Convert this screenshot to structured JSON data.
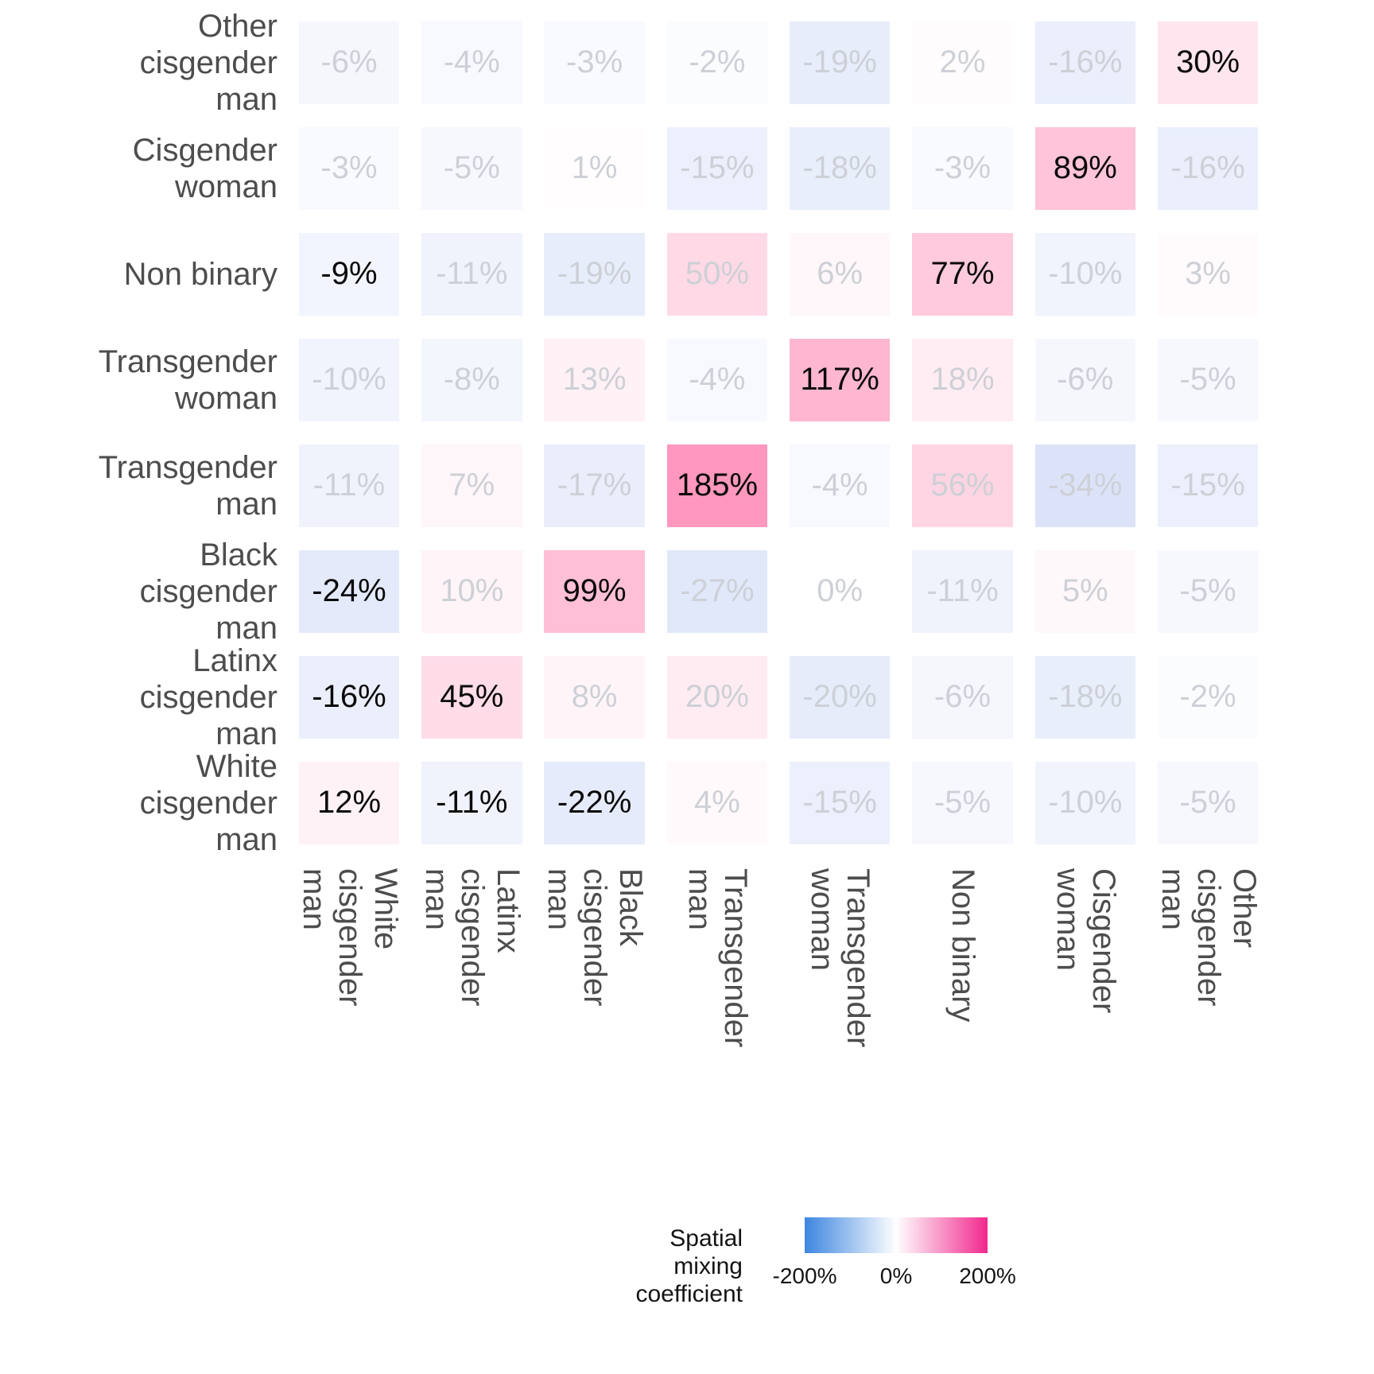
{
  "chart_data": {
    "type": "heatmap",
    "title": "",
    "unit": "%",
    "x_axis": {
      "categories_left_to_right": [
        "White cisgender man",
        "Latinx cisgender man",
        "Black cisgender man",
        "Transgender man",
        "Transgender woman",
        "Non binary",
        "Cisgender woman",
        "Other cisgender man"
      ],
      "label_lines": [
        [
          "White",
          "cisgender",
          "man"
        ],
        [
          "Latinx",
          "cisgender",
          "man"
        ],
        [
          "Black",
          "cisgender",
          "man"
        ],
        [
          "Transgender",
          "man"
        ],
        [
          "Transgender",
          "woman"
        ],
        [
          "Non binary"
        ],
        [
          "Cisgender",
          "woman"
        ],
        [
          "Other",
          "cisgender",
          "man"
        ]
      ]
    },
    "y_axis": {
      "categories_top_to_bottom": [
        "Other cisgender man",
        "Cisgender woman",
        "Non binary",
        "Transgender woman",
        "Transgender man",
        "Black cisgender man",
        "Latinx cisgender man",
        "White cisgender man"
      ],
      "label_lines": [
        [
          "Other",
          "cisgender",
          "man"
        ],
        [
          "Cisgender",
          "woman"
        ],
        [
          "Non binary"
        ],
        [
          "Transgender",
          "woman"
        ],
        [
          "Transgender",
          "man"
        ],
        [
          "Black",
          "cisgender",
          "man"
        ],
        [
          "Latinx",
          "cisgender",
          "man"
        ],
        [
          "White",
          "cisgender",
          "man"
        ]
      ]
    },
    "values_percent_rows_top_to_bottom": [
      [
        -6,
        -4,
        -3,
        -2,
        -19,
        2,
        -16,
        30
      ],
      [
        -3,
        -5,
        1,
        -15,
        -18,
        -3,
        89,
        -16
      ],
      [
        -9,
        -11,
        -19,
        50,
        6,
        77,
        -10,
        3
      ],
      [
        -10,
        -8,
        13,
        -4,
        117,
        18,
        -6,
        -5
      ],
      [
        -11,
        7,
        -17,
        185,
        -4,
        56,
        -34,
        -15
      ],
      [
        -24,
        10,
        99,
        -27,
        0,
        -11,
        5,
        -5
      ],
      [
        -16,
        45,
        8,
        20,
        -20,
        -6,
        -18,
        -2
      ],
      [
        12,
        -11,
        -22,
        4,
        -15,
        -5,
        -10,
        -5
      ]
    ],
    "black_text_cells": [
      [
        0,
        0,
        0,
        0,
        0,
        0,
        0,
        1
      ],
      [
        0,
        0,
        0,
        0,
        0,
        0,
        1,
        0
      ],
      [
        1,
        0,
        0,
        0,
        0,
        1,
        0,
        0
      ],
      [
        0,
        0,
        0,
        0,
        1,
        0,
        0,
        0
      ],
      [
        0,
        0,
        0,
        1,
        0,
        0,
        0,
        0
      ],
      [
        1,
        0,
        1,
        0,
        0,
        0,
        0,
        0
      ],
      [
        1,
        1,
        0,
        0,
        0,
        0,
        0,
        0
      ],
      [
        1,
        1,
        1,
        0,
        0,
        0,
        0,
        0
      ]
    ],
    "legend": {
      "title_lines": [
        "Spatial",
        "mixing",
        "coefficient"
      ],
      "ticks": [
        {
          "label": "-200%",
          "value": -200
        },
        {
          "label": "0%",
          "value": 0
        },
        {
          "label": "200%",
          "value": 200
        }
      ],
      "colors": {
        "low": "#3E86E0",
        "mid": "#FFFFFF",
        "high": "#F1298E"
      }
    },
    "text_colors": {
      "significant": "#0a0a0a",
      "not_significant": "#cdd0d6",
      "axis": "#4d4d4d"
    }
  }
}
